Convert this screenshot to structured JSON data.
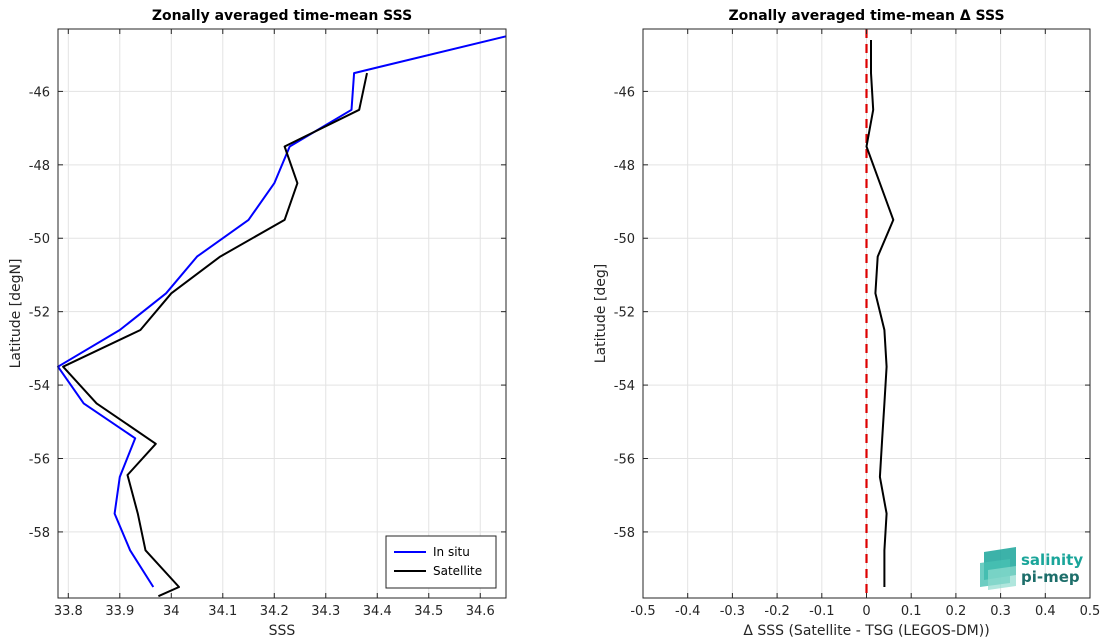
{
  "chart_data": [
    {
      "type": "line",
      "title": "Zonally averaged time-mean SSS",
      "xlabel": "SSS",
      "ylabel": "Latitude [degN]",
      "xlim": [
        33.78,
        34.65
      ],
      "ylim": [
        -59.8,
        -44.3
      ],
      "xticks": [
        33.8,
        33.9,
        34,
        34.1,
        34.2,
        34.3,
        34.4,
        34.5,
        34.6
      ],
      "xtick_labels": [
        "33.8",
        "33.9",
        "34",
        "34.1",
        "34.2",
        "34.3",
        "34.4",
        "34.5",
        "34.6"
      ],
      "yticks": [
        -46,
        -48,
        -50,
        -52,
        -54,
        -56,
        -58
      ],
      "ytick_labels": [
        "-46",
        "-48",
        "-50",
        "-52",
        "-54",
        "-56",
        "-58"
      ],
      "grid": true,
      "legend_position": "bottom-right",
      "series": [
        {
          "name": "In situ",
          "color": "#0000ff",
          "points": [
            [
              34.65,
              -44.5
            ],
            [
              34.355,
              -45.5
            ],
            [
              34.35,
              -46.5
            ],
            [
              34.23,
              -47.5
            ],
            [
              34.2,
              -48.5
            ],
            [
              34.15,
              -49.5
            ],
            [
              34.05,
              -50.5
            ],
            [
              33.99,
              -51.5
            ],
            [
              33.9,
              -52.5
            ],
            [
              33.78,
              -53.5
            ],
            [
              33.83,
              -54.5
            ],
            [
              33.93,
              -55.45
            ],
            [
              33.9,
              -56.5
            ],
            [
              33.89,
              -57.5
            ],
            [
              33.92,
              -58.5
            ],
            [
              33.965,
              -59.5
            ]
          ]
        },
        {
          "name": "Satellite",
          "color": "#000000",
          "points": [
            [
              34.38,
              -45.5
            ],
            [
              34.365,
              -46.5
            ],
            [
              34.22,
              -47.5
            ],
            [
              34.245,
              -48.5
            ],
            [
              34.22,
              -49.5
            ],
            [
              34.095,
              -50.5
            ],
            [
              34.0,
              -51.5
            ],
            [
              33.94,
              -52.5
            ],
            [
              33.79,
              -53.5
            ],
            [
              33.855,
              -54.5
            ],
            [
              33.97,
              -55.6
            ],
            [
              33.915,
              -56.45
            ],
            [
              33.935,
              -57.5
            ],
            [
              33.95,
              -58.5
            ],
            [
              34.015,
              -59.5
            ],
            [
              33.975,
              -59.75
            ]
          ]
        }
      ]
    },
    {
      "type": "line",
      "title": "Zonally averaged time-mean Δ SSS",
      "xlabel": "Δ SSS (Satellite - TSG (LEGOS-DM))",
      "ylabel": "Latitude [deg]",
      "xlim": [
        -0.5,
        0.5
      ],
      "ylim": [
        -59.8,
        -44.3
      ],
      "xticks": [
        -0.5,
        -0.4,
        -0.3,
        -0.2,
        -0.1,
        0,
        0.1,
        0.2,
        0.3,
        0.4,
        0.5
      ],
      "xtick_labels": [
        "-0.5",
        "-0.4",
        "-0.3",
        "-0.2",
        "-0.1",
        "0",
        "0.1",
        "0.2",
        "0.3",
        "0.4",
        "0.5"
      ],
      "yticks": [
        -46,
        -48,
        -50,
        -52,
        -54,
        -56,
        -58
      ],
      "ytick_labels": [
        "-46",
        "-48",
        "-50",
        "-52",
        "-54",
        "-56",
        "-58"
      ],
      "grid": true,
      "reference_line": {
        "x": 0,
        "color": "#dd0000",
        "style": "dashed"
      },
      "series": [
        {
          "color": "#000000",
          "points": [
            [
              0.01,
              -44.6
            ],
            [
              0.01,
              -45.5
            ],
            [
              0.015,
              -46.5
            ],
            [
              0.0,
              -47.5
            ],
            [
              0.03,
              -48.5
            ],
            [
              0.06,
              -49.5
            ],
            [
              0.025,
              -50.5
            ],
            [
              0.02,
              -51.5
            ],
            [
              0.04,
              -52.5
            ],
            [
              0.045,
              -53.5
            ],
            [
              0.04,
              -54.5
            ],
            [
              0.035,
              -55.5
            ],
            [
              0.03,
              -56.5
            ],
            [
              0.045,
              -57.5
            ],
            [
              0.04,
              -58.5
            ],
            [
              0.04,
              -59.5
            ]
          ]
        }
      ]
    }
  ],
  "logo": {
    "line1": "salinity",
    "line2": "pi-mep",
    "color1": "#1aa59a",
    "color2": "#1d6e6a"
  }
}
